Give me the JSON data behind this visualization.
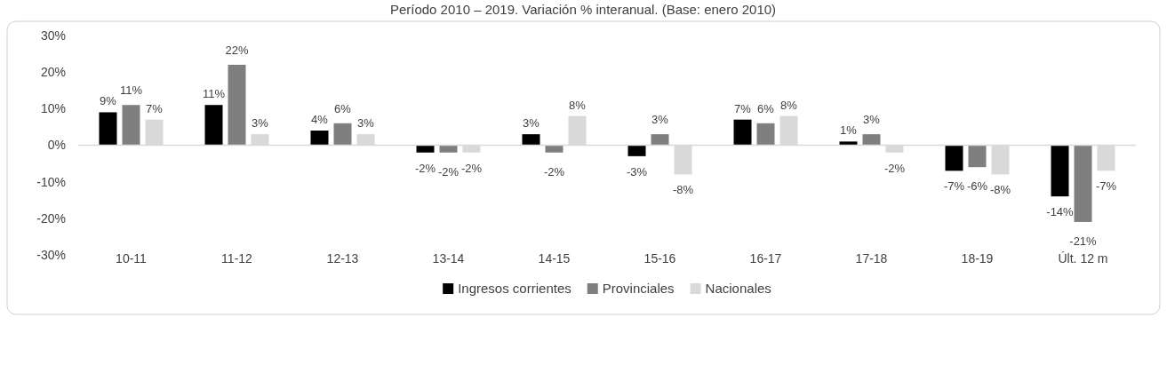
{
  "chart_data": {
    "type": "bar",
    "title": "Período 2010 – 2019. Variación % interanual. (Base: enero 2010)",
    "categories": [
      "10-11",
      "11-12",
      "12-13",
      "13-14",
      "14-15",
      "15-16",
      "16-17",
      "17-18",
      "18-19",
      "Últ. 12 m"
    ],
    "series": [
      {
        "name": "Ingresos corrientes",
        "color": "#000000",
        "values": [
          9,
          11,
          4,
          -2,
          3,
          -3,
          7,
          1,
          -7,
          -14
        ],
        "value_labels": [
          "9%",
          "11%",
          "4%",
          "-2%",
          "3%",
          "-3%",
          "7%",
          "1%",
          "-7%",
          "-14%"
        ]
      },
      {
        "name": "Provinciales",
        "color": "#7f7f7f",
        "values": [
          11,
          22,
          6,
          -2,
          -2,
          3,
          6,
          3,
          -6,
          -21
        ],
        "value_labels": [
          "11%",
          "22%",
          "6%",
          "-2%",
          "-2%",
          "3%",
          "6%",
          "3%",
          "-6%",
          "-21%"
        ]
      },
      {
        "name": "Nacionales",
        "color": "#d9d9d9",
        "values": [
          7,
          3,
          3,
          -2,
          8,
          -8,
          8,
          -2,
          -8,
          -7
        ],
        "value_labels": [
          "7%",
          "3%",
          "3%",
          "-2%",
          "8%",
          "-8%",
          "8%",
          "-2%",
          "-8%",
          "-7%"
        ]
      }
    ],
    "ylim": [
      -30,
      30
    ],
    "yticks": [
      {
        "value": -30,
        "label": "-30%"
      },
      {
        "value": -20,
        "label": "-20%"
      },
      {
        "value": -10,
        "label": "-10%"
      },
      {
        "value": 0,
        "label": "0%"
      },
      {
        "value": 10,
        "label": "10%"
      },
      {
        "value": 20,
        "label": "20%"
      },
      {
        "value": 30,
        "label": "30%"
      }
    ],
    "legend": "bottom"
  }
}
